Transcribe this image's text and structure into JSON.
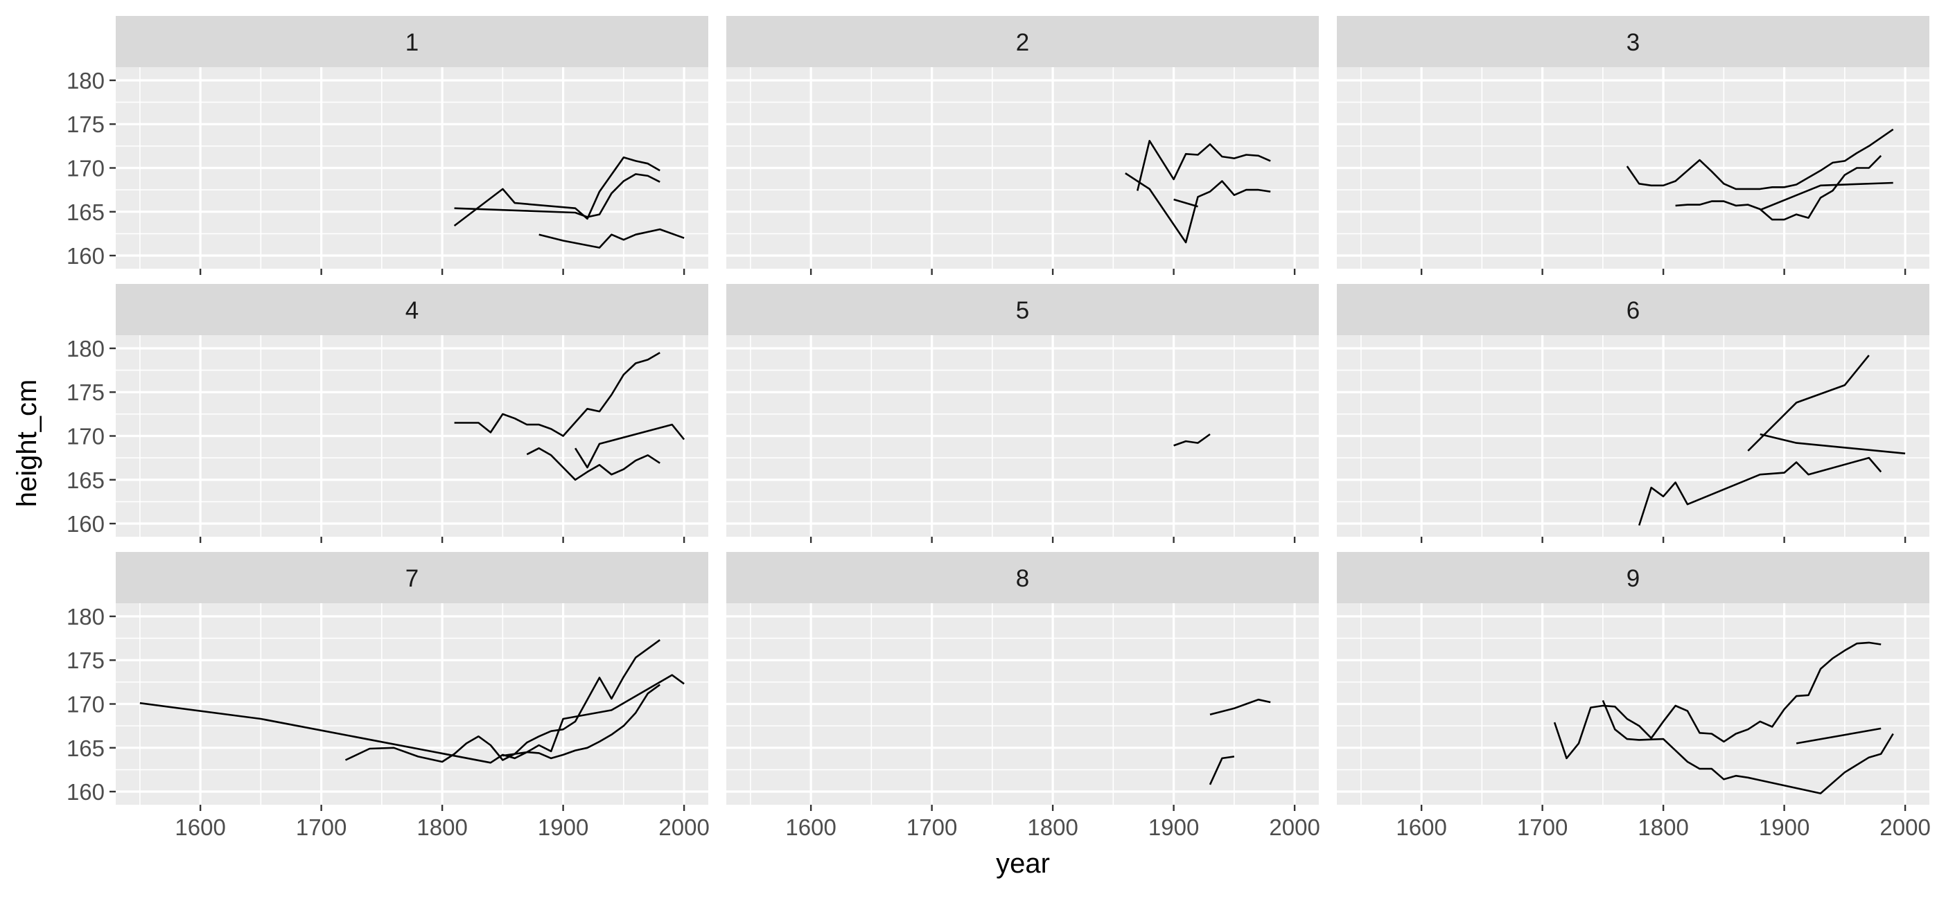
{
  "colors": {
    "panel_bg": "#EBEBEB",
    "strip_bg": "#D9D9D9",
    "grid": "#FFFFFF",
    "line": "#000000",
    "text": "#1A1A1A",
    "tick_text": "#4D4D4D",
    "tick": "#333333"
  },
  "chart_data": {
    "type": "line",
    "facet_by": "panel",
    "xlabel": "year",
    "ylabel": "height_cm",
    "xlim": [
      1530,
      2020
    ],
    "ylim": [
      158.5,
      181.5
    ],
    "x_ticks": [
      1600,
      1700,
      1800,
      1900,
      2000
    ],
    "y_ticks": [
      160,
      165,
      170,
      175,
      180
    ],
    "grid": true,
    "legend": "none",
    "panels": [
      {
        "label": "1",
        "series": [
          {
            "x": [
              1810,
              1850,
              1860,
              1910,
              1920,
              1930,
              1950,
              1960,
              1970,
              1980
            ],
            "y": [
              163.4,
              167.6,
              166.0,
              165.4,
              164.2,
              167.3,
              171.2,
              170.8,
              170.5,
              169.7
            ]
          },
          {
            "x": [
              1810,
              1910,
              1920,
              1930,
              1940,
              1950,
              1960,
              1970,
              1980
            ],
            "y": [
              165.4,
              164.9,
              164.4,
              164.7,
              167.1,
              168.5,
              169.3,
              169.1,
              168.4
            ]
          },
          {
            "x": [
              1880,
              1900,
              1930,
              1940,
              1950,
              1960,
              1980,
              2000
            ],
            "y": [
              162.4,
              161.7,
              160.9,
              162.4,
              161.8,
              162.4,
              163.0,
              162.0
            ]
          }
        ]
      },
      {
        "label": "2",
        "series": [
          {
            "x": [
              1870,
              1880,
              1900,
              1910,
              1920,
              1930,
              1940,
              1950,
              1960,
              1970,
              1980
            ],
            "y": [
              167.4,
              173.1,
              168.7,
              171.6,
              171.5,
              172.7,
              171.3,
              171.1,
              171.5,
              171.4,
              170.8
            ]
          },
          {
            "x": [
              1860,
              1880,
              1910,
              1920,
              1930,
              1940,
              1950,
              1960,
              1970,
              1980
            ],
            "y": [
              169.4,
              167.6,
              161.5,
              166.7,
              167.3,
              168.5,
              166.9,
              167.5,
              167.5,
              167.3
            ]
          },
          {
            "x": [
              1900,
              1920
            ],
            "y": [
              166.4,
              165.6
            ]
          }
        ]
      },
      {
        "label": "3",
        "series": [
          {
            "x": [
              1770,
              1780,
              1790,
              1800,
              1810,
              1820,
              1830,
              1840,
              1850,
              1860,
              1870,
              1880,
              1890,
              1900,
              1910,
              1920,
              1930,
              1940,
              1950,
              1960,
              1970,
              1990
            ],
            "y": [
              170.2,
              168.2,
              168.0,
              168.0,
              168.5,
              169.7,
              170.9,
              169.6,
              168.2,
              167.6,
              167.6,
              167.6,
              167.8,
              167.8,
              168.1,
              168.9,
              169.7,
              170.6,
              170.8,
              171.7,
              172.5,
              174.4
            ]
          },
          {
            "x": [
              1810,
              1820,
              1830,
              1840,
              1850,
              1860,
              1870,
              1880,
              1890,
              1900,
              1910,
              1920,
              1930,
              1940,
              1950,
              1960,
              1970,
              1980
            ],
            "y": [
              165.7,
              165.8,
              165.8,
              166.2,
              166.2,
              165.7,
              165.8,
              165.3,
              164.1,
              164.1,
              164.7,
              164.3,
              166.6,
              167.4,
              169.2,
              170.0,
              170.0,
              171.4
            ]
          },
          {
            "x": [
              1880,
              1930,
              1990
            ],
            "y": [
              165.2,
              168.0,
              168.3
            ]
          }
        ]
      },
      {
        "label": "4",
        "series": [
          {
            "x": [
              1810,
              1830,
              1840,
              1850,
              1860,
              1870,
              1880,
              1890,
              1900,
              1920,
              1930,
              1940,
              1950,
              1960,
              1970,
              1980
            ],
            "y": [
              171.5,
              171.5,
              170.4,
              172.5,
              172.0,
              171.3,
              171.3,
              170.8,
              170.0,
              173.1,
              172.8,
              174.7,
              177.0,
              178.3,
              178.7,
              179.5
            ]
          },
          {
            "x": [
              1870,
              1880,
              1890,
              1900,
              1910,
              1920,
              1930,
              1940,
              1950,
              1960,
              1970,
              1980
            ],
            "y": [
              167.9,
              168.6,
              167.8,
              166.4,
              165.0,
              165.9,
              166.7,
              165.6,
              166.2,
              167.2,
              167.8,
              166.9
            ]
          },
          {
            "x": [
              1910,
              1920,
              1930,
              1990,
              2000
            ],
            "y": [
              168.6,
              166.4,
              169.1,
              171.3,
              169.6
            ]
          }
        ]
      },
      {
        "label": "5",
        "series": [
          {
            "x": [
              1900,
              1910,
              1920,
              1930
            ],
            "y": [
              168.9,
              169.4,
              169.2,
              170.2
            ]
          }
        ]
      },
      {
        "label": "6",
        "series": [
          {
            "x": [
              1870,
              1910,
              1950,
              1970
            ],
            "y": [
              168.3,
              173.8,
              175.8,
              179.2
            ]
          },
          {
            "x": [
              1880,
              1910,
              2000
            ],
            "y": [
              170.2,
              169.2,
              168.0
            ]
          },
          {
            "x": [
              1780,
              1790,
              1800,
              1810,
              1820,
              1880,
              1900,
              1910,
              1920,
              1970,
              1980
            ],
            "y": [
              159.8,
              164.1,
              163.1,
              164.7,
              162.2,
              165.6,
              165.8,
              167.0,
              165.6,
              167.5,
              165.9
            ]
          }
        ]
      },
      {
        "label": "7",
        "series": [
          {
            "x": [
              1550,
              1650,
              1840,
              1850,
              1860,
              1870,
              1880,
              1890,
              1900,
              1910,
              1920,
              1930,
              1940,
              1950,
              1960,
              1970,
              1980
            ],
            "y": [
              170.1,
              168.3,
              163.3,
              164.2,
              163.8,
              164.5,
              164.4,
              163.8,
              164.2,
              164.7,
              165.0,
              165.7,
              166.5,
              167.5,
              169.0,
              171.2,
              172.2
            ]
          },
          {
            "x": [
              1720,
              1740,
              1760,
              1780,
              1800,
              1810,
              1820,
              1830,
              1840,
              1850,
              1860,
              1870,
              1880,
              1890,
              1900,
              1910,
              1920,
              1930,
              1940,
              1950,
              1960,
              1980
            ],
            "y": [
              163.6,
              164.9,
              165.0,
              164.0,
              163.4,
              164.3,
              165.5,
              166.3,
              165.3,
              163.6,
              164.3,
              165.6,
              166.3,
              166.9,
              167.1,
              168.0,
              170.5,
              173.0,
              170.6,
              173.1,
              175.3,
              177.3
            ]
          },
          {
            "x": [
              1850,
              1870,
              1880,
              1890,
              1900,
              1940,
              1990,
              2000
            ],
            "y": [
              164.1,
              164.5,
              165.3,
              164.6,
              168.3,
              169.3,
              173.3,
              172.3
            ]
          }
        ]
      },
      {
        "label": "8",
        "series": [
          {
            "x": [
              1930,
              1950,
              1960,
              1970,
              1980
            ],
            "y": [
              168.8,
              169.5,
              170.0,
              170.5,
              170.2
            ]
          },
          {
            "x": [
              1930,
              1940,
              1950
            ],
            "y": [
              160.8,
              163.8,
              164.0
            ]
          }
        ]
      },
      {
        "label": "9",
        "series": [
          {
            "x": [
              1710,
              1720,
              1730,
              1740,
              1750,
              1760,
              1770,
              1780,
              1790,
              1800,
              1810,
              1820,
              1830,
              1840,
              1850,
              1860,
              1870,
              1880,
              1890,
              1900,
              1910,
              1920,
              1930,
              1940,
              1950,
              1960,
              1970,
              1980
            ],
            "y": [
              167.9,
              163.8,
              165.5,
              169.6,
              169.8,
              169.7,
              168.3,
              167.5,
              166.1,
              168.0,
              169.8,
              169.2,
              166.7,
              166.6,
              165.7,
              166.6,
              167.1,
              168.0,
              167.4,
              169.4,
              170.9,
              171.0,
              174.0,
              175.2,
              176.1,
              176.9,
              177.0,
              176.8
            ]
          },
          {
            "x": [
              1750,
              1760,
              1770,
              1780,
              1800,
              1810,
              1820,
              1830,
              1840,
              1850,
              1860,
              1870,
              1880,
              1930,
              1950,
              1970,
              1980,
              1990
            ],
            "y": [
              170.4,
              167.1,
              166.0,
              165.9,
              166.0,
              164.7,
              163.4,
              162.6,
              162.6,
              161.4,
              161.8,
              161.6,
              161.3,
              159.8,
              162.2,
              163.9,
              164.3,
              166.6
            ]
          },
          {
            "x": [
              1910,
              1980
            ],
            "y": [
              165.5,
              167.2
            ]
          }
        ]
      }
    ]
  }
}
